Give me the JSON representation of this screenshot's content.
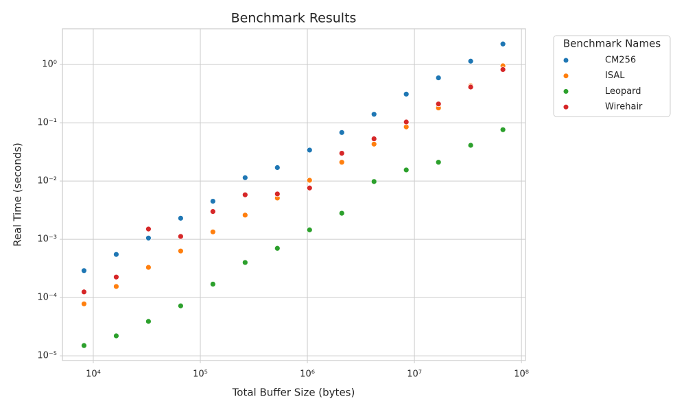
{
  "chart_data": {
    "type": "scatter",
    "title": "Benchmark Results",
    "xlabel": "Total Buffer Size (bytes)",
    "ylabel": "Real Time (seconds)",
    "xscale": "log",
    "yscale": "log",
    "grid": true,
    "x": [
      8192,
      16384,
      32768,
      65536,
      131072,
      262144,
      524288,
      1048576,
      2097152,
      4194304,
      8388608,
      16777216,
      33554432,
      67108864
    ],
    "series": [
      {
        "name": "CM256",
        "color": "#1f77b4",
        "values": [
          0.00029,
          0.00055,
          0.00105,
          0.0023,
          0.0045,
          0.0114,
          0.017,
          0.034,
          0.068,
          0.14,
          0.31,
          0.59,
          1.14,
          2.25
        ]
      },
      {
        "name": "ISAL",
        "color": "#ff7f0e",
        "values": [
          7.8e-05,
          0.000155,
          0.00033,
          0.00063,
          0.00134,
          0.0026,
          0.0051,
          0.0103,
          0.021,
          0.043,
          0.085,
          0.18,
          0.43,
          0.95
        ]
      },
      {
        "name": "Leopard",
        "color": "#2ca02c",
        "values": [
          1.5e-05,
          2.2e-05,
          3.9e-05,
          7.2e-05,
          0.00017,
          0.0004,
          0.0007,
          0.00145,
          0.0028,
          0.0098,
          0.0155,
          0.021,
          0.041,
          0.076
        ]
      },
      {
        "name": "Wirehair",
        "color": "#d62728",
        "values": [
          0.000125,
          0.000225,
          0.0015,
          0.00112,
          0.003,
          0.0058,
          0.006,
          0.0076,
          0.03,
          0.053,
          0.103,
          0.21,
          0.41,
          0.82
        ]
      }
    ],
    "xlim": [
      5150,
      109000000
    ],
    "ylim": [
      8.3e-06,
      4.1
    ],
    "xticks": [
      {
        "value": 10000,
        "label": "10⁴"
      },
      {
        "value": 100000,
        "label": "10⁵"
      },
      {
        "value": 1000000,
        "label": "10⁶"
      },
      {
        "value": 10000000,
        "label": "10⁷"
      },
      {
        "value": 100000000,
        "label": "10⁸"
      }
    ],
    "yticks": [
      {
        "value": 1e-05,
        "label": "10⁻⁵"
      },
      {
        "value": 0.0001,
        "label": "10⁻⁴"
      },
      {
        "value": 0.001,
        "label": "10⁻³"
      },
      {
        "value": 0.01,
        "label": "10⁻²"
      },
      {
        "value": 0.1,
        "label": "10⁻¹"
      },
      {
        "value": 1,
        "label": "10⁰"
      }
    ],
    "legend": {
      "title": "Benchmark Names",
      "position": "outside upper right"
    }
  }
}
